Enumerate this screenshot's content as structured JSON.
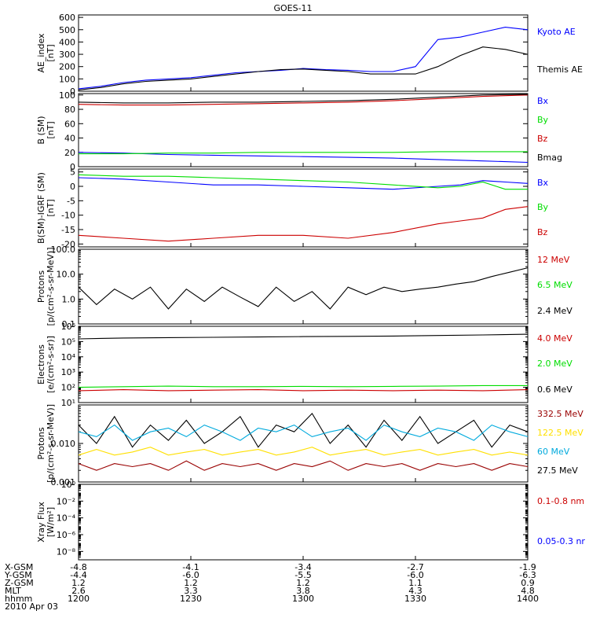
{
  "title": "GOES-11",
  "colors": {
    "black": "#000000",
    "blue": "#0000ff",
    "green": "#00dd00",
    "red": "#cc0000",
    "cyan": "#00aadd",
    "yellow": "#ffe000",
    "darkred": "#990000"
  },
  "chart_data": [
    {
      "type": "line",
      "name": "ae-index",
      "ylabel": [
        "AE_index",
        "[nT]"
      ],
      "scale": "linear",
      "ylim": [
        0,
        620
      ],
      "yticks": [
        0,
        100,
        200,
        300,
        400,
        500,
        600
      ],
      "ytick_labels": [
        "0",
        "100",
        "200",
        "300",
        "400",
        "500",
        "600"
      ],
      "x": [
        0,
        0.05,
        0.1,
        0.15,
        0.2,
        0.25,
        0.3,
        0.35,
        0.4,
        0.45,
        0.5,
        0.55,
        0.6,
        0.65,
        0.7,
        0.75,
        0.8,
        0.85,
        0.9,
        0.95,
        1.0
      ],
      "series": [
        {
          "name": "Kyoto AE",
          "color": "#0000ff",
          "values": [
            20,
            40,
            70,
            90,
            100,
            110,
            130,
            150,
            160,
            170,
            185,
            175,
            170,
            160,
            160,
            200,
            420,
            440,
            480,
            520,
            500
          ]
        },
        {
          "name": "Themis AE",
          "color": "#000000",
          "values": [
            10,
            30,
            60,
            80,
            90,
            100,
            120,
            140,
            160,
            175,
            180,
            170,
            160,
            140,
            140,
            140,
            200,
            290,
            360,
            340,
            300
          ]
        }
      ],
      "legend": [
        {
          "text": "Kyoto AE",
          "color": "#0000ff"
        },
        {
          "text": "Themis AE",
          "color": "#000000"
        }
      ]
    },
    {
      "type": "line",
      "name": "b-field",
      "ylabel": [
        "B (SM)",
        "[nT]"
      ],
      "scale": "linear",
      "ylim": [
        0,
        102
      ],
      "yticks": [
        0,
        20,
        40,
        60,
        80,
        100
      ],
      "ytick_labels": [
        "0",
        "20",
        "40",
        "60",
        "80",
        "100"
      ],
      "x": [
        0,
        0.1,
        0.2,
        0.3,
        0.4,
        0.5,
        0.6,
        0.7,
        0.8,
        0.9,
        1.0
      ],
      "series": [
        {
          "name": "Bx",
          "color": "#0000ff",
          "values": [
            20,
            19,
            17,
            16,
            15,
            14,
            13,
            12,
            10,
            8,
            6
          ]
        },
        {
          "name": "By",
          "color": "#00dd00",
          "values": [
            18,
            18,
            19,
            19,
            20,
            20,
            20,
            20,
            21,
            21,
            21
          ]
        },
        {
          "name": "Bz",
          "color": "#cc0000",
          "values": [
            87,
            86,
            86,
            87,
            88,
            89,
            90,
            92,
            95,
            98,
            100
          ]
        },
        {
          "name": "Bmag",
          "color": "#000000",
          "values": [
            90,
            89,
            89,
            90,
            90,
            91,
            92,
            94,
            97,
            100,
            101
          ]
        }
      ],
      "legend": [
        {
          "text": "Bx",
          "color": "#0000ff"
        },
        {
          "text": "By",
          "color": "#00dd00"
        },
        {
          "text": "Bz",
          "color": "#cc0000"
        },
        {
          "text": "Bmag",
          "color": "#000000"
        }
      ]
    },
    {
      "type": "line",
      "name": "b-minus-igrf",
      "ylabel": [
        "B(SM)-IGRF (SM)",
        "[nT]"
      ],
      "scale": "linear",
      "ylim": [
        -21,
        6
      ],
      "yticks": [
        -20,
        -15,
        -10,
        -5,
        0,
        5
      ],
      "ytick_labels": [
        "-20",
        "-15",
        "-10",
        "-5",
        "0",
        "5"
      ],
      "x": [
        0,
        0.1,
        0.2,
        0.3,
        0.4,
        0.5,
        0.6,
        0.7,
        0.8,
        0.85,
        0.9,
        0.95,
        1.0
      ],
      "series": [
        {
          "name": "Bx",
          "color": "#0000ff",
          "values": [
            3,
            2.5,
            1.5,
            0.5,
            0.5,
            0,
            -0.5,
            -1,
            0,
            0.5,
            2,
            1.5,
            1
          ]
        },
        {
          "name": "By",
          "color": "#00dd00",
          "values": [
            4,
            3.5,
            3.5,
            3,
            2.5,
            2,
            1.5,
            0.5,
            -0.5,
            0,
            1.5,
            -1,
            -1
          ]
        },
        {
          "name": "Bz",
          "color": "#cc0000",
          "values": [
            -17,
            -18,
            -19,
            -18,
            -17,
            -17,
            -18,
            -16,
            -13,
            -12,
            -11,
            -8,
            -7
          ]
        }
      ],
      "legend": [
        {
          "text": "Bx",
          "color": "#0000ff"
        },
        {
          "text": "By",
          "color": "#00dd00"
        },
        {
          "text": "Bz",
          "color": "#cc0000"
        }
      ]
    },
    {
      "type": "line",
      "name": "protons-high",
      "ylabel": [
        "Protons",
        "[p/(cm²-s-sr-MeV)]"
      ],
      "scale": "log",
      "ylim": [
        0.1,
        100
      ],
      "yticks": [
        0.1,
        1,
        10,
        100
      ],
      "ytick_labels": [
        "0.1",
        "1.0",
        "10.0",
        "100.0"
      ],
      "x": [
        0,
        0.04,
        0.08,
        0.12,
        0.16,
        0.2,
        0.24,
        0.28,
        0.32,
        0.36,
        0.4,
        0.44,
        0.48,
        0.52,
        0.56,
        0.6,
        0.64,
        0.68,
        0.72,
        0.76,
        0.8,
        0.84,
        0.88,
        0.92,
        0.96,
        1.0
      ],
      "series": [
        {
          "name": "2.4 MeV",
          "color": "#000000",
          "values": [
            3,
            0.6,
            2.5,
            1.0,
            3,
            0.4,
            2.5,
            0.8,
            3,
            1.2,
            0.5,
            3,
            0.8,
            2,
            0.4,
            3,
            1.5,
            3,
            2,
            2.5,
            3,
            4,
            5,
            8,
            12,
            18
          ]
        }
      ],
      "legend": [
        {
          "text": "12 MeV",
          "color": "#cc0000"
        },
        {
          "text": "6.5 MeV",
          "color": "#00dd00"
        },
        {
          "text": "2.4 MeV",
          "color": "#000000"
        }
      ]
    },
    {
      "type": "line",
      "name": "electrons",
      "ylabel": [
        "Electrons",
        "[e/(cm²-s-sr)]"
      ],
      "scale": "log",
      "ylim": [
        10,
        1000000
      ],
      "yticks": [
        10,
        100,
        1000,
        10000,
        100000,
        1000000
      ],
      "ytick_labels": [
        "10¹",
        "10²",
        "10³",
        "10⁴",
        "10⁵",
        "10⁶"
      ],
      "x": [
        0,
        0.1,
        0.2,
        0.3,
        0.4,
        0.5,
        0.6,
        0.7,
        0.8,
        0.9,
        1.0
      ],
      "series": [
        {
          "name": "0.6 MeV",
          "color": "#000000",
          "values": [
            150000,
            170000,
            180000,
            190000,
            200000,
            210000,
            220000,
            230000,
            250000,
            270000,
            300000
          ]
        },
        {
          "name": "2.0 MeV",
          "color": "#00dd00",
          "values": [
            100,
            110,
            120,
            110,
            110,
            115,
            110,
            115,
            120,
            130,
            130
          ]
        },
        {
          "name": "4.0 MeV",
          "color": "#cc0000",
          "values": [
            60,
            70,
            60,
            65,
            70,
            60,
            65,
            60,
            65,
            60,
            70
          ]
        }
      ],
      "legend": [
        {
          "text": "4.0 MeV",
          "color": "#cc0000"
        },
        {
          "text": "2.0 MeV",
          "color": "#00dd00"
        },
        {
          "text": "0.6 MeV",
          "color": "#000000"
        }
      ]
    },
    {
      "type": "line",
      "name": "protons-low",
      "ylabel": [
        "Protons",
        "[p/(cm²-s-sr-MeV)]"
      ],
      "scale": "log",
      "ylim": [
        0.001,
        0.1
      ],
      "yticks": [
        0.001,
        0.01
      ],
      "ytick_labels": [
        "0.001",
        "0.010"
      ],
      "x": [
        0,
        0.04,
        0.08,
        0.12,
        0.16,
        0.2,
        0.24,
        0.28,
        0.32,
        0.36,
        0.4,
        0.44,
        0.48,
        0.52,
        0.56,
        0.6,
        0.64,
        0.68,
        0.72,
        0.76,
        0.8,
        0.84,
        0.88,
        0.92,
        0.96,
        1.0
      ],
      "series": [
        {
          "name": "27.5 MeV",
          "color": "#000000",
          "values": [
            0.03,
            0.01,
            0.05,
            0.008,
            0.03,
            0.012,
            0.04,
            0.01,
            0.02,
            0.05,
            0.008,
            0.03,
            0.02,
            0.06,
            0.01,
            0.03,
            0.008,
            0.04,
            0.012,
            0.05,
            0.01,
            0.02,
            0.04,
            0.008,
            0.03,
            0.02
          ]
        },
        {
          "name": "60 MeV",
          "color": "#00aadd",
          "values": [
            0.02,
            0.015,
            0.03,
            0.012,
            0.02,
            0.025,
            0.015,
            0.03,
            0.02,
            0.012,
            0.025,
            0.02,
            0.03,
            0.015,
            0.02,
            0.025,
            0.012,
            0.03,
            0.02,
            0.015,
            0.025,
            0.02,
            0.012,
            0.03,
            0.02,
            0.015
          ]
        },
        {
          "name": "122.5 MeV",
          "color": "#ffe000",
          "values": [
            0.005,
            0.007,
            0.005,
            0.006,
            0.008,
            0.005,
            0.006,
            0.007,
            0.005,
            0.006,
            0.007,
            0.005,
            0.006,
            0.008,
            0.005,
            0.006,
            0.007,
            0.005,
            0.006,
            0.007,
            0.005,
            0.006,
            0.007,
            0.005,
            0.006,
            0.005
          ]
        },
        {
          "name": "332.5 MeV",
          "color": "#990000",
          "values": [
            0.003,
            0.002,
            0.003,
            0.0025,
            0.003,
            0.002,
            0.0035,
            0.002,
            0.003,
            0.0025,
            0.003,
            0.002,
            0.003,
            0.0025,
            0.0035,
            0.002,
            0.003,
            0.0025,
            0.003,
            0.002,
            0.003,
            0.0025,
            0.003,
            0.002,
            0.003,
            0.0025
          ]
        }
      ],
      "legend": [
        {
          "text": "332.5 MeV",
          "color": "#990000"
        },
        {
          "text": "122.5 MeV",
          "color": "#ffe000"
        },
        {
          "text": "60 MeV",
          "color": "#00aadd"
        },
        {
          "text": "27.5 MeV",
          "color": "#000000"
        }
      ]
    },
    {
      "type": "line",
      "name": "xray",
      "ylabel": [
        "Xray Flux",
        "[W/m²]"
      ],
      "scale": "log",
      "ylim": [
        1e-09,
        1
      ],
      "yticks": [
        1e-08,
        1e-06,
        0.0001,
        0.01,
        1
      ],
      "ytick_labels": [
        "10⁻⁸",
        "10⁻⁶",
        "10⁻⁴",
        "10⁻²",
        "10⁰"
      ],
      "series": [],
      "legend": [
        {
          "text": "0.1-0.8 nm",
          "color": "#cc0000"
        },
        {
          "text": "0.05-0.3 nr",
          "color": "#0000ff"
        }
      ]
    }
  ],
  "x_axis": {
    "row_labels": [
      "X-GSM",
      "Y-GSM",
      "Z-GSM",
      "MLT",
      "hhmm",
      "2010 Apr 03"
    ],
    "columns": [
      [
        "-4.8",
        "-4.4",
        "1.2",
        "2.6",
        "1200"
      ],
      [
        "-4.1",
        "-6.0",
        "1.2",
        "3.3",
        "1230"
      ],
      [
        "-3.4",
        "-5.5",
        "1.2",
        "3.8",
        "1300"
      ],
      [
        "-2.7",
        "-6.0",
        "1.1",
        "4.3",
        "1330"
      ],
      [
        "-1.9",
        "-6.3",
        "0.9",
        "4.8",
        "1400"
      ]
    ]
  }
}
